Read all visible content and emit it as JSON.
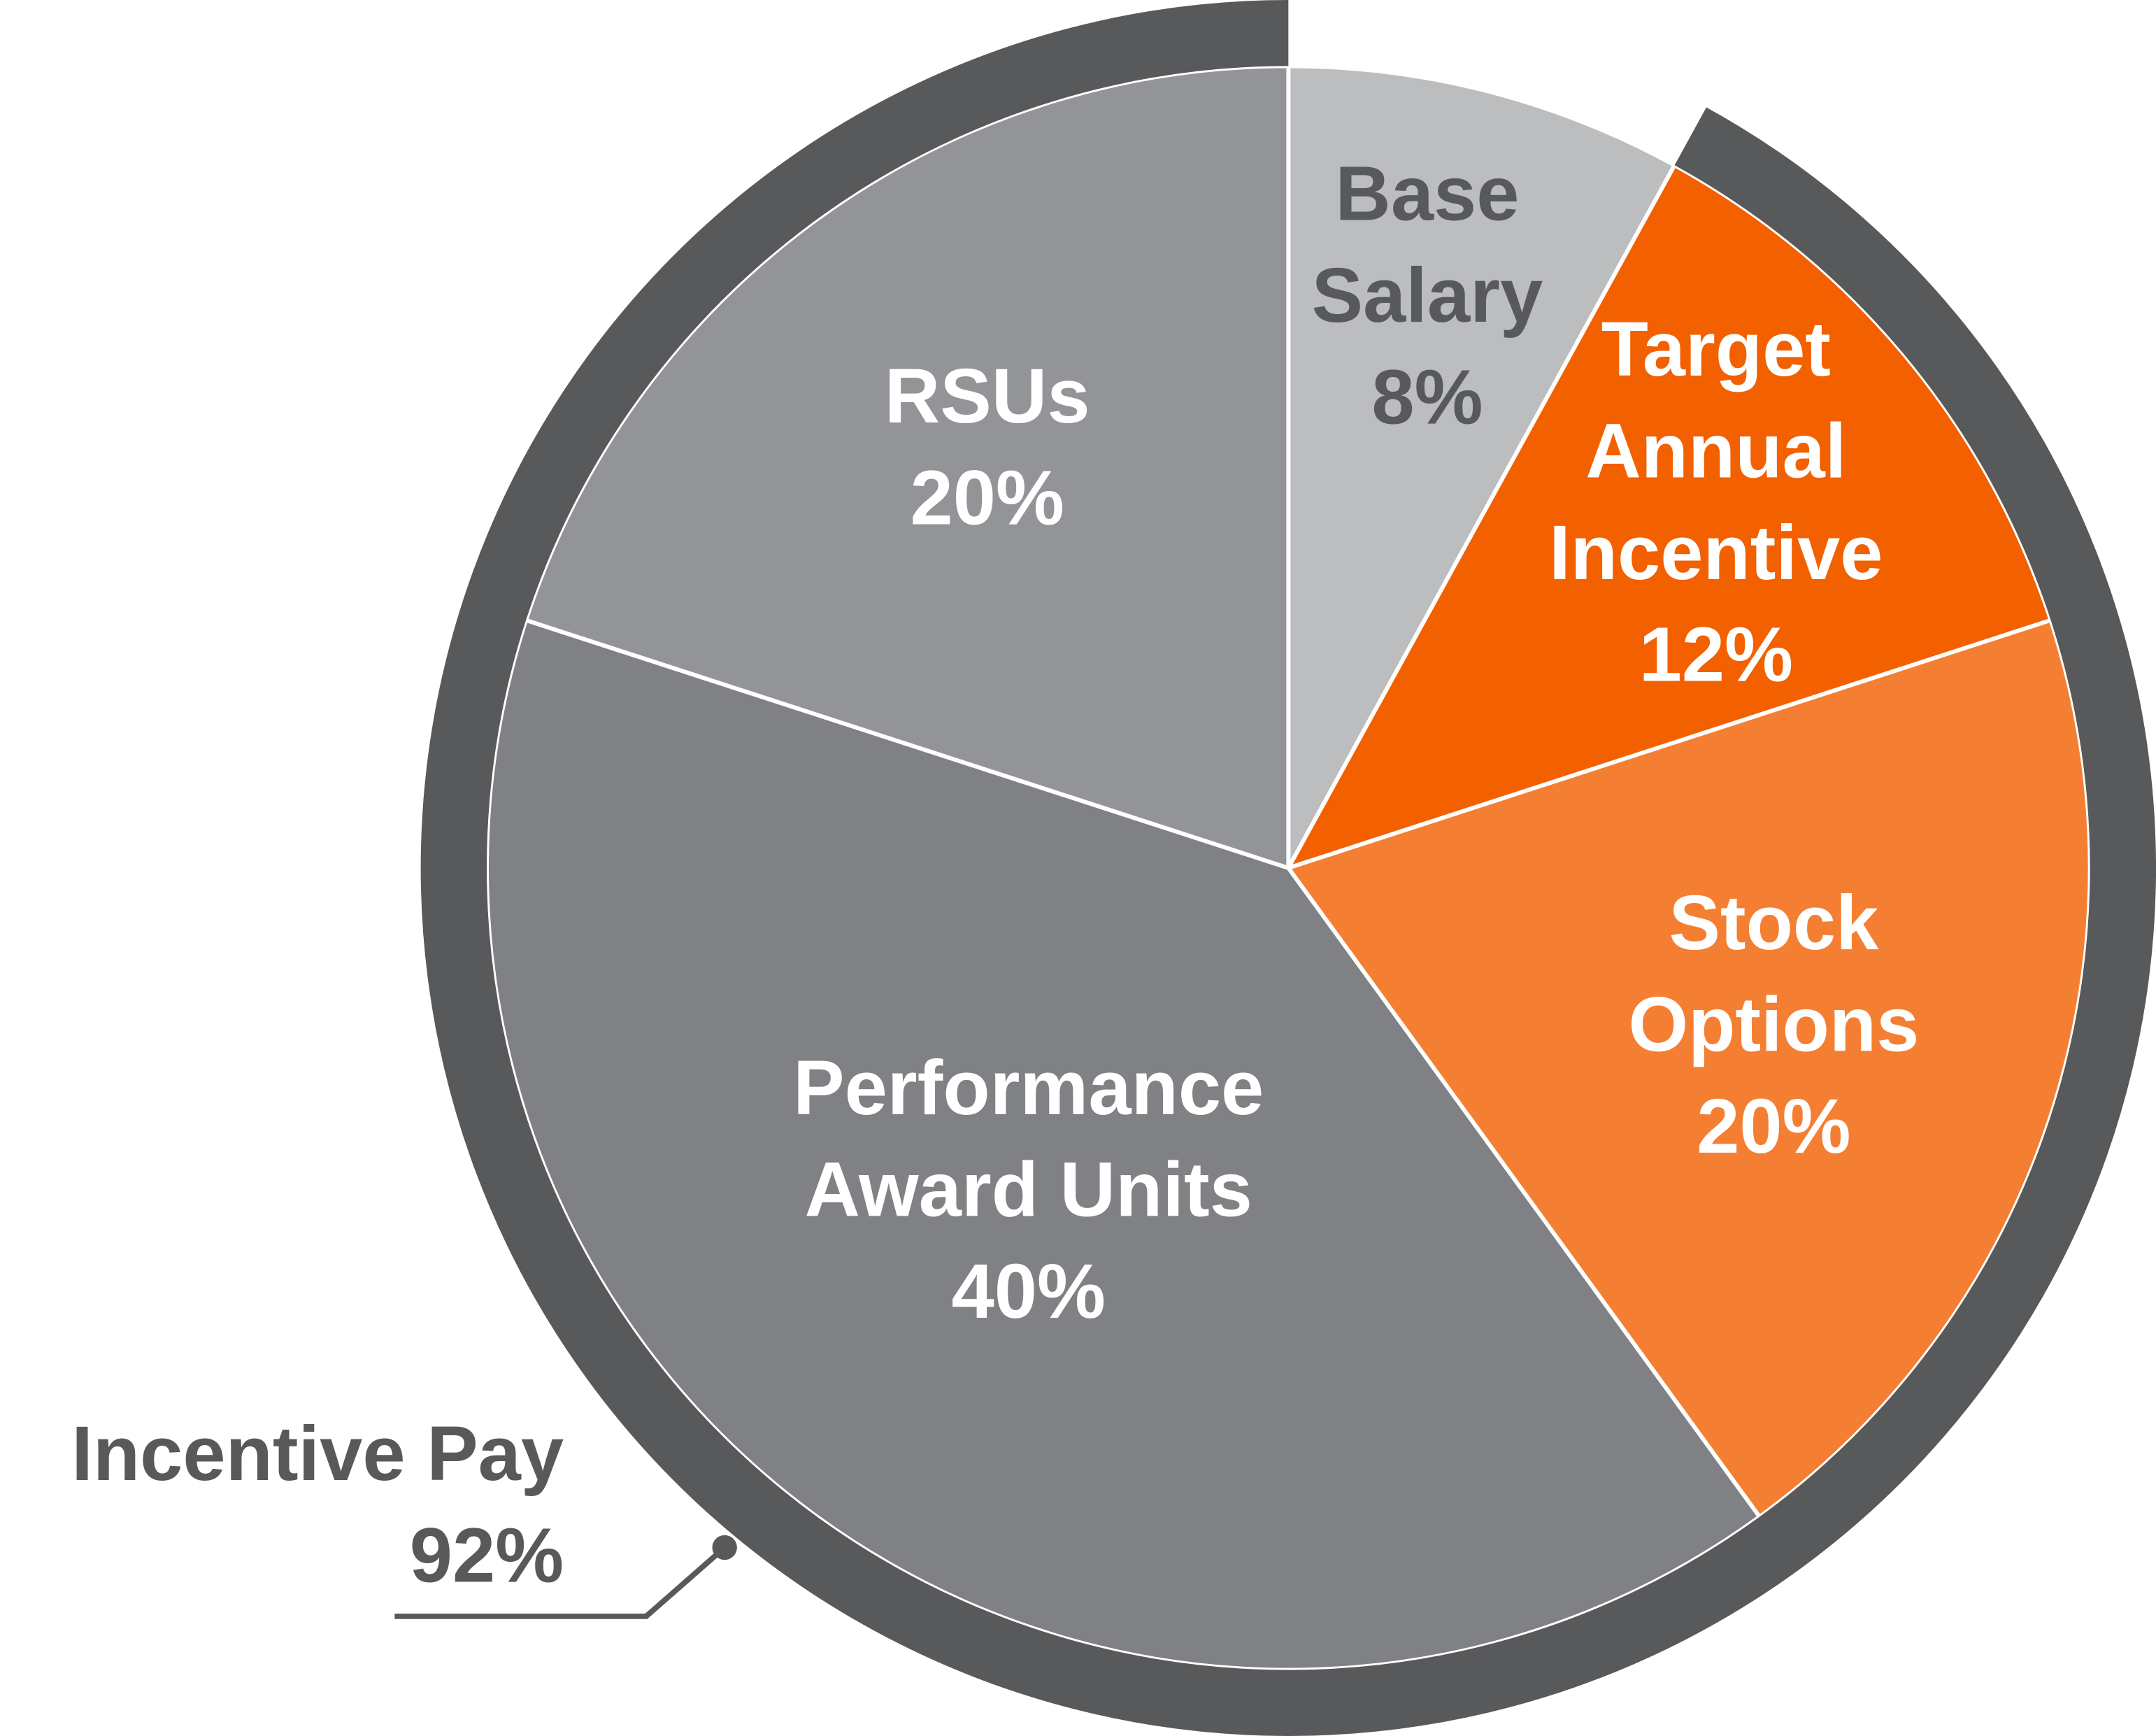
{
  "chart_data": {
    "type": "pie",
    "categories": [
      "Base Salary",
      "Target Annual Incentive",
      "Stock Options",
      "Performance Award Units",
      "RSUs"
    ],
    "values": [
      8,
      12,
      20,
      40,
      20
    ],
    "value_labels": [
      "8%",
      "12%",
      "20%",
      "40%",
      "20%"
    ],
    "colors": [
      "#bcbdbf",
      "#f26000",
      "#f47f32",
      "#808184",
      "#939497"
    ],
    "label_colors": [
      "#58595b",
      "#ffffff",
      "#ffffff",
      "#ffffff",
      "#ffffff"
    ],
    "annotation": {
      "label": "Incentive Pay",
      "value": 92,
      "value_label": "92%",
      "color": "#58595b"
    }
  }
}
